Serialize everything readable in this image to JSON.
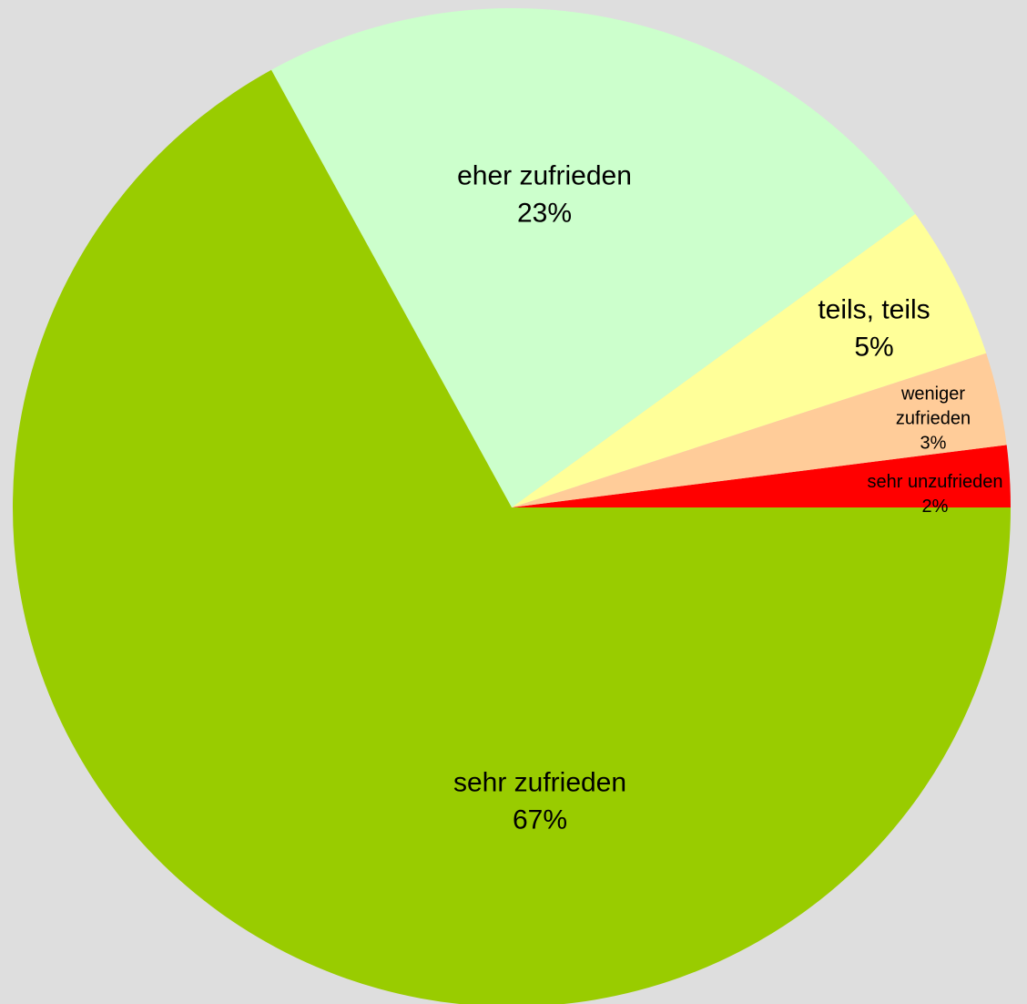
{
  "chart_data": {
    "type": "pie",
    "categories": [
      "sehr unzufrieden",
      "weniger zufrieden",
      "teils, teils",
      "eher zufrieden",
      "sehr zufrieden"
    ],
    "values": [
      2,
      3,
      5,
      23,
      67
    ],
    "value_labels": [
      "2%",
      "3%",
      "5%",
      "23%",
      "67%"
    ],
    "colors": [
      "#ff0000",
      "#ffcc99",
      "#ffff99",
      "#ccffcc",
      "#99cc00"
    ]
  }
}
